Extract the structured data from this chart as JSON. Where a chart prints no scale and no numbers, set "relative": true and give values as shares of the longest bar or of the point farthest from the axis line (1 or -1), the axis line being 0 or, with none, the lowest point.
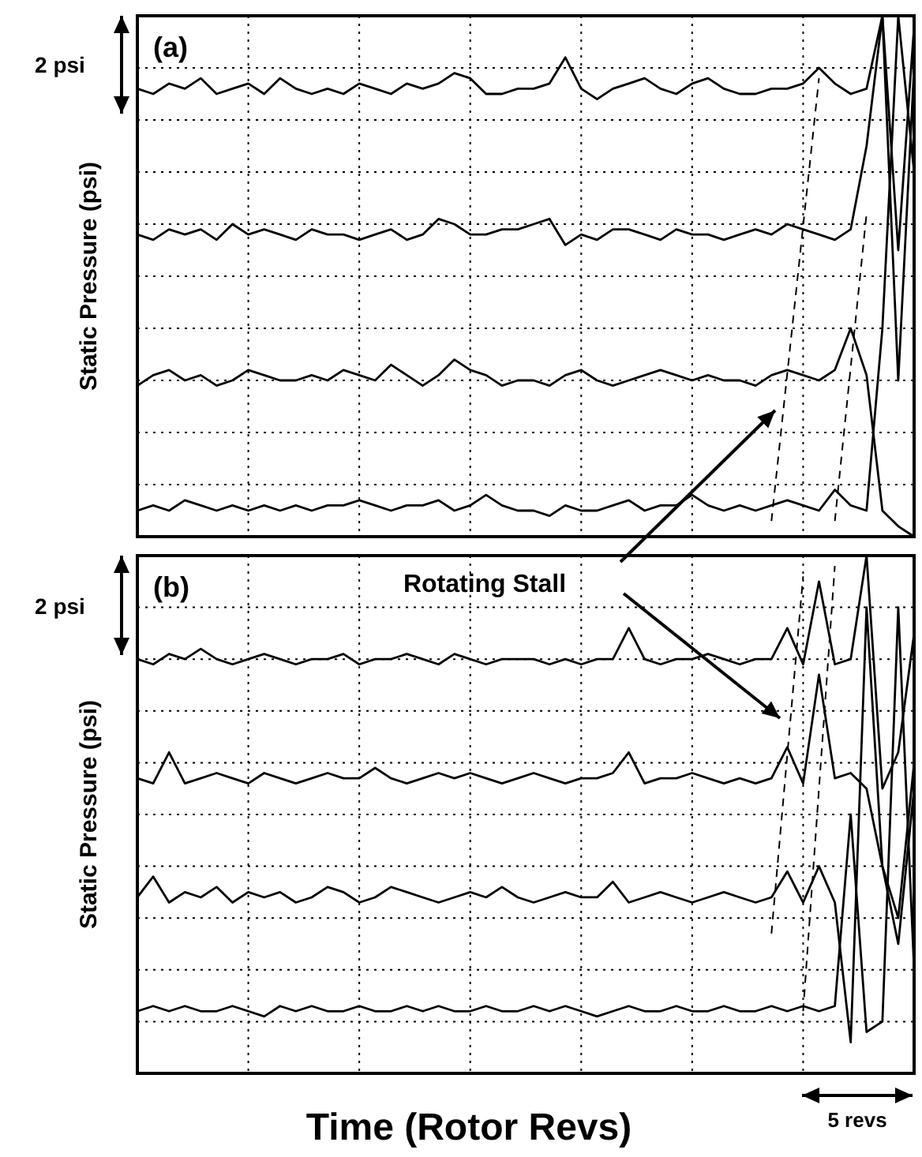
{
  "chart_data": [
    {
      "type": "line",
      "relative": true,
      "grid": true,
      "ylabel": "Static Pressure (psi)",
      "annotations": [
        "(a)",
        "2 psi"
      ],
      "categories": [
        null,
        null,
        null,
        null,
        null,
        null,
        null,
        null,
        null,
        null,
        null,
        null,
        null,
        null,
        null,
        null,
        null,
        null,
        null,
        null,
        null,
        null,
        null,
        null,
        null,
        null,
        null,
        null,
        null,
        null,
        null,
        null,
        null,
        null,
        null,
        null,
        null,
        null,
        null,
        null,
        null,
        null,
        null,
        null,
        null,
        null,
        null,
        null,
        null,
        null
      ],
      "series": [
        {
          "color": "#000000",
          "values": [
            0.86,
            0.85,
            0.87,
            0.86,
            0.88,
            0.85,
            0.86,
            0.87,
            0.85,
            0.88,
            0.86,
            0.85,
            0.86,
            0.85,
            0.87,
            0.86,
            0.85,
            0.87,
            0.86,
            0.87,
            0.89,
            0.88,
            0.85,
            0.85,
            0.86,
            0.86,
            0.87,
            0.92,
            0.86,
            0.84,
            0.86,
            0.87,
            0.88,
            0.86,
            0.85,
            0.87,
            0.88,
            0.86,
            0.85,
            0.85,
            0.86,
            0.86,
            0.87,
            0.9,
            0.87,
            0.85,
            0.86,
            1.0,
            0.55,
            0.98
          ]
        },
        {
          "color": "#000000",
          "values": [
            0.58,
            0.57,
            0.59,
            0.58,
            0.59,
            0.57,
            0.6,
            0.58,
            0.59,
            0.58,
            0.57,
            0.59,
            0.58,
            0.58,
            0.57,
            0.58,
            0.59,
            0.57,
            0.58,
            0.61,
            0.6,
            0.58,
            0.58,
            0.59,
            0.59,
            0.6,
            0.61,
            0.56,
            0.58,
            0.57,
            0.59,
            0.59,
            0.58,
            0.57,
            0.59,
            0.58,
            0.58,
            0.57,
            0.58,
            0.59,
            0.58,
            0.6,
            0.59,
            0.58,
            0.57,
            0.59,
            0.75,
            1.0,
            0.3,
            0.9
          ]
        },
        {
          "color": "#000000",
          "values": [
            0.29,
            0.31,
            0.32,
            0.3,
            0.31,
            0.29,
            0.3,
            0.32,
            0.31,
            0.3,
            0.3,
            0.31,
            0.3,
            0.32,
            0.31,
            0.3,
            0.33,
            0.31,
            0.29,
            0.31,
            0.34,
            0.32,
            0.31,
            0.29,
            0.3,
            0.3,
            0.29,
            0.31,
            0.32,
            0.3,
            0.29,
            0.3,
            0.31,
            0.32,
            0.31,
            0.3,
            0.31,
            0.3,
            0.3,
            0.29,
            0.31,
            0.32,
            0.31,
            0.3,
            0.32,
            0.4,
            0.31,
            0.05,
            0.02,
            0.0
          ]
        },
        {
          "color": "#000000",
          "values": [
            0.05,
            0.06,
            0.05,
            0.07,
            0.06,
            0.05,
            0.06,
            0.05,
            0.06,
            0.05,
            0.06,
            0.05,
            0.06,
            0.06,
            0.07,
            0.06,
            0.05,
            0.06,
            0.06,
            0.07,
            0.05,
            0.06,
            0.08,
            0.06,
            0.05,
            0.05,
            0.04,
            0.06,
            0.05,
            0.05,
            0.06,
            0.07,
            0.05,
            0.06,
            0.06,
            0.08,
            0.06,
            0.05,
            0.06,
            0.05,
            0.06,
            0.07,
            0.06,
            0.05,
            0.09,
            0.06,
            0.05,
            0.4,
            1.0,
            0.7
          ]
        },
        {
          "color": "#000000",
          "line_style": "dashed",
          "values": [
            null,
            null,
            null,
            null,
            null,
            null,
            null,
            null,
            null,
            null,
            null,
            null,
            null,
            null,
            null,
            null,
            null,
            null,
            null,
            null,
            null,
            null,
            null,
            null,
            null,
            null,
            null,
            null,
            null,
            null,
            null,
            null,
            null,
            null,
            null,
            null,
            null,
            null,
            null,
            null,
            0.03,
            null,
            null,
            0.88,
            null,
            null,
            null,
            null,
            null,
            null
          ]
        },
        {
          "color": "#000000",
          "line_style": "dashed",
          "values": [
            null,
            null,
            null,
            null,
            null,
            null,
            null,
            null,
            null,
            null,
            null,
            null,
            null,
            null,
            null,
            null,
            null,
            null,
            null,
            null,
            null,
            null,
            null,
            null,
            null,
            null,
            null,
            null,
            null,
            null,
            null,
            null,
            null,
            null,
            null,
            null,
            null,
            null,
            null,
            null,
            null,
            null,
            null,
            null,
            0.03,
            null,
            0.62,
            null,
            null,
            null
          ]
        }
      ]
    },
    {
      "type": "line",
      "relative": true,
      "grid": true,
      "ylabel": "Static Pressure (psi)",
      "xlabel": "Time (Rotor Revs)",
      "annotations": [
        "(b)",
        "2 psi",
        "Rotating Stall",
        "5 revs"
      ],
      "categories": [
        null,
        null,
        null,
        null,
        null,
        null,
        null,
        null,
        null,
        null,
        null,
        null,
        null,
        null,
        null,
        null,
        null,
        null,
        null,
        null,
        null,
        null,
        null,
        null,
        null,
        null,
        null,
        null,
        null,
        null,
        null,
        null,
        null,
        null,
        null,
        null,
        null,
        null,
        null,
        null,
        null,
        null,
        null,
        null,
        null,
        null,
        null,
        null,
        null,
        null
      ],
      "series": [
        {
          "color": "#000000",
          "values": [
            0.8,
            0.79,
            0.81,
            0.8,
            0.82,
            0.8,
            0.79,
            0.8,
            0.81,
            0.8,
            0.79,
            0.8,
            0.8,
            0.81,
            0.79,
            0.8,
            0.8,
            0.81,
            0.8,
            0.79,
            0.81,
            0.8,
            0.79,
            0.8,
            0.8,
            0.8,
            0.79,
            0.8,
            0.79,
            0.8,
            0.8,
            0.86,
            0.8,
            0.79,
            0.8,
            0.8,
            0.81,
            0.8,
            0.79,
            0.8,
            0.8,
            0.86,
            0.79,
            0.95,
            0.79,
            0.8,
            1.0,
            0.55,
            0.62,
            0.85
          ]
        },
        {
          "color": "#000000",
          "values": [
            0.57,
            0.56,
            0.62,
            0.56,
            0.57,
            0.58,
            0.57,
            0.56,
            0.58,
            0.57,
            0.56,
            0.57,
            0.58,
            0.57,
            0.57,
            0.59,
            0.57,
            0.56,
            0.57,
            0.58,
            0.57,
            0.58,
            0.57,
            0.56,
            0.57,
            0.58,
            0.57,
            0.56,
            0.57,
            0.57,
            0.58,
            0.62,
            0.56,
            0.57,
            0.57,
            0.58,
            0.57,
            0.56,
            0.57,
            0.56,
            0.57,
            0.63,
            0.56,
            0.77,
            0.57,
            0.58,
            0.55,
            0.4,
            0.25,
            0.55
          ]
        },
        {
          "color": "#000000",
          "values": [
            0.34,
            0.38,
            0.33,
            0.35,
            0.34,
            0.36,
            0.33,
            0.35,
            0.34,
            0.35,
            0.33,
            0.34,
            0.36,
            0.35,
            0.33,
            0.34,
            0.36,
            0.35,
            0.34,
            0.33,
            0.34,
            0.35,
            0.34,
            0.36,
            0.34,
            0.33,
            0.34,
            0.35,
            0.34,
            0.34,
            0.37,
            0.33,
            0.34,
            0.35,
            0.34,
            0.33,
            0.34,
            0.35,
            0.34,
            0.33,
            0.34,
            0.39,
            0.33,
            0.4,
            0.33,
            0.06,
            0.9,
            0.4,
            0.3,
            0.6
          ]
        },
        {
          "color": "#000000",
          "values": [
            0.12,
            0.13,
            0.12,
            0.13,
            0.12,
            0.12,
            0.13,
            0.12,
            0.11,
            0.13,
            0.12,
            0.13,
            0.12,
            0.12,
            0.13,
            0.12,
            0.12,
            0.13,
            0.12,
            0.13,
            0.12,
            0.12,
            0.13,
            0.12,
            0.12,
            0.13,
            0.12,
            0.13,
            0.12,
            0.11,
            0.12,
            0.13,
            0.12,
            0.12,
            0.13,
            0.12,
            0.12,
            0.13,
            0.12,
            0.12,
            0.13,
            0.12,
            0.13,
            0.12,
            0.13,
            0.5,
            0.08,
            0.1,
            0.9,
            0.2
          ]
        },
        {
          "color": "#000000",
          "line_style": "dashed",
          "values": [
            null,
            null,
            null,
            null,
            null,
            null,
            null,
            null,
            null,
            null,
            null,
            null,
            null,
            null,
            null,
            null,
            null,
            null,
            null,
            null,
            null,
            null,
            null,
            null,
            null,
            null,
            null,
            null,
            null,
            null,
            null,
            null,
            null,
            null,
            null,
            null,
            null,
            null,
            null,
            null,
            0.27,
            null,
            0.96,
            null,
            null,
            null,
            null,
            null,
            null,
            null
          ]
        },
        {
          "color": "#000000",
          "line_style": "dashed",
          "values": [
            null,
            null,
            null,
            null,
            null,
            null,
            null,
            null,
            null,
            null,
            null,
            null,
            null,
            null,
            null,
            null,
            null,
            null,
            null,
            null,
            null,
            null,
            null,
            null,
            null,
            null,
            null,
            null,
            null,
            null,
            null,
            null,
            null,
            null,
            null,
            null,
            null,
            null,
            null,
            null,
            null,
            null,
            0.12,
            null,
            0.98,
            null,
            null,
            null,
            null,
            null
          ]
        }
      ]
    }
  ]
}
